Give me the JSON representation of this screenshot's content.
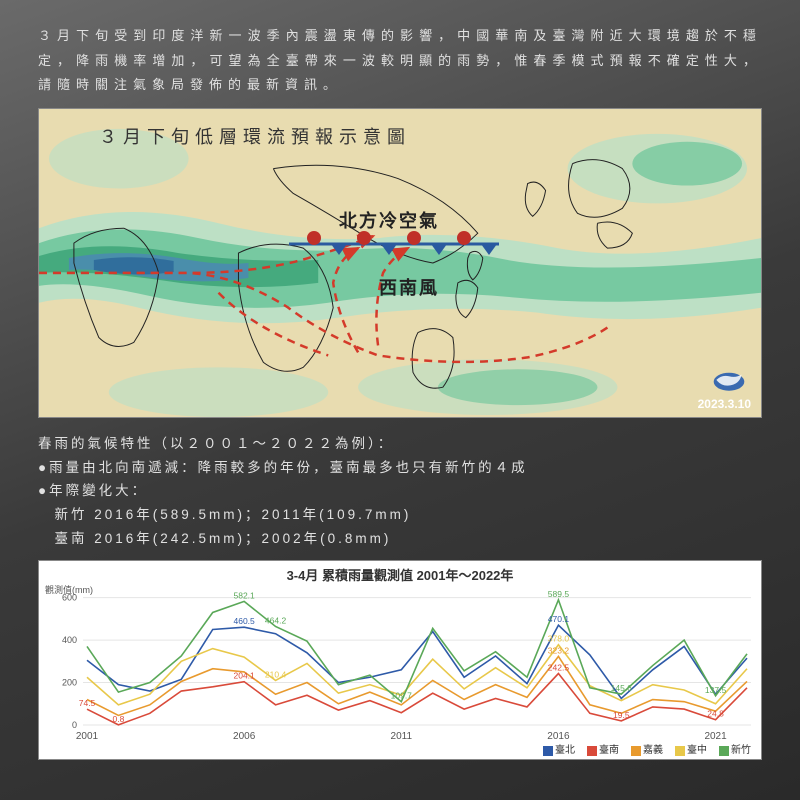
{
  "intro": "３月下旬受到印度洋新一波季內震盪東傳的影響，中國華南及臺灣附近大環境趨於不穩定，降雨機率增加，可望為全臺帶來一波較明顯的雨勢，惟春季模式預報不確定性大，請隨時關注氣象局發佈的最新資訊。",
  "map": {
    "title": "３月下旬低層環流預報示意圖",
    "date": "2023.3.10",
    "label_cold": "北方冷空氣",
    "label_sw": "西南風",
    "bg_beige": "#e8dcb0",
    "moisture_colors": [
      "#b8e0c8",
      "#6bc49a",
      "#3ca478",
      "#4a8bb0",
      "#2d6a9a"
    ]
  },
  "climate": {
    "heading": "春雨的氣候特性（以２００１～２０２２為例）：",
    "line1": "●雨量由北向南遞減：降雨較多的年份，臺南最多也只有新竹的４成",
    "line2": "●年際變化大：",
    "line3": "　新竹 2016年(589.5mm)；2011年(109.7mm)",
    "line4": "　臺南 2016年(242.5mm)；2002年(0.8mm)"
  },
  "chart": {
    "title": "3-4月 累積雨量觀測值 2001年～2022年",
    "ylabel": "觀測值(mm)",
    "ymin": 0,
    "ymax": 650,
    "ytick_step": 200,
    "grid_color": "#e5e5e5",
    "years": [
      2001,
      2002,
      2003,
      2004,
      2005,
      2006,
      2007,
      2008,
      2009,
      2010,
      2011,
      2012,
      2013,
      2014,
      2015,
      2016,
      2017,
      2018,
      2019,
      2020,
      2021,
      2022
    ],
    "xtick_years": [
      2001,
      2006,
      2011,
      2016,
      2021
    ],
    "series": [
      {
        "name": "臺北",
        "color": "#2e5aa8",
        "values": [
          305,
          190,
          160,
          215,
          450,
          460.5,
          430,
          340,
          200,
          225,
          260,
          440,
          225,
          325,
          195,
          470.1,
          330,
          125,
          260,
          370,
          145,
          315
        ]
      },
      {
        "name": "臺南",
        "color": "#d94a3a",
        "values": [
          74.5,
          0.8,
          55,
          160,
          180,
          204.1,
          95,
          140,
          70,
          115,
          58,
          150,
          75,
          125,
          85,
          242.5,
          55,
          19.5,
          85,
          75,
          24.8,
          175
        ]
      },
      {
        "name": "嘉義",
        "color": "#e89a2e",
        "values": [
          120,
          45,
          95,
          205,
          265,
          250,
          145,
          200,
          100,
          155,
          95,
          210,
          120,
          190,
          130,
          323.2,
          95,
          55,
          120,
          110,
          65,
          205
        ]
      },
      {
        "name": "臺中",
        "color": "#e8c84a",
        "values": [
          225,
          95,
          145,
          300,
          360,
          320,
          210,
          290,
          150,
          190,
          140,
          310,
          170,
          270,
          175,
          378.0,
          185,
          115,
          190,
          165,
          100,
          265
        ]
      },
      {
        "name": "新竹",
        "color": "#5aa858",
        "values": [
          370,
          155,
          200,
          325,
          530,
          582.1,
          464.2,
          395,
          190,
          235,
          109.7,
          455,
          255,
          345,
          225,
          589.5,
          175,
          145.6,
          280,
          400,
          137.5,
          335
        ]
      }
    ],
    "annotations": [
      {
        "year": 2006,
        "value": 582.1,
        "text": "582.1",
        "color": "#5aa858"
      },
      {
        "year": 2006,
        "value": 460.5,
        "text": "460.5",
        "color": "#2e5aa8"
      },
      {
        "year": 2006,
        "value": 204.1,
        "text": "204.1",
        "color": "#d94a3a"
      },
      {
        "year": 2007,
        "value": 464.2,
        "text": "464.2",
        "color": "#5aa858"
      },
      {
        "year": 2007,
        "value": 210.4,
        "text": "210.4",
        "color": "#e8c84a"
      },
      {
        "year": 2011,
        "value": 109.7,
        "text": "109.7",
        "color": "#5aa858"
      },
      {
        "year": 2016,
        "value": 589.5,
        "text": "589.5",
        "color": "#5aa858"
      },
      {
        "year": 2016,
        "value": 470.1,
        "text": "470.1",
        "color": "#2e5aa8"
      },
      {
        "year": 2016,
        "value": 378.0,
        "text": "378.0",
        "color": "#e8c84a"
      },
      {
        "year": 2016,
        "value": 323.2,
        "text": "323.2",
        "color": "#e89a2e"
      },
      {
        "year": 2016,
        "value": 242.5,
        "text": "242.5",
        "color": "#d94a3a"
      },
      {
        "year": 2018,
        "value": 145.6,
        "text": "145.6",
        "color": "#5aa858"
      },
      {
        "year": 2018,
        "value": 19.5,
        "text": "19.5",
        "color": "#d94a3a"
      },
      {
        "year": 2021,
        "value": 137.5,
        "text": "137.5",
        "color": "#5aa858"
      },
      {
        "year": 2021,
        "value": 24.8,
        "text": "24.8",
        "color": "#d94a3a"
      },
      {
        "year": 2001,
        "value": 74.5,
        "text": "74.5",
        "color": "#d94a3a"
      },
      {
        "year": 2002,
        "value": 0.8,
        "text": "0.8",
        "color": "#d94a3a"
      }
    ]
  }
}
